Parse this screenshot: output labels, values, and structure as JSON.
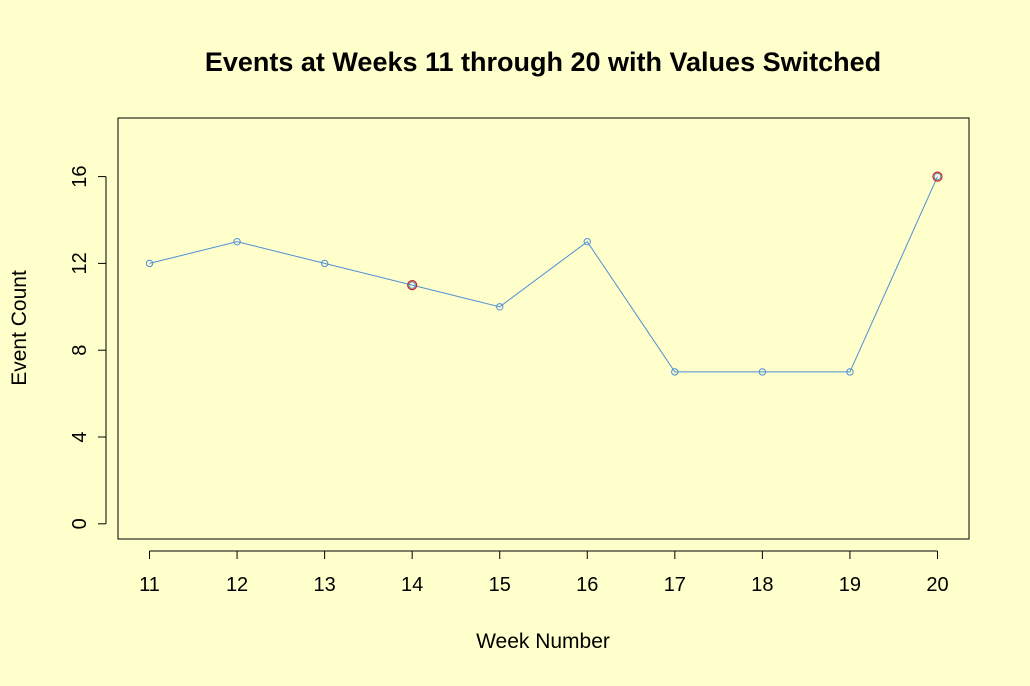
{
  "chart_data": {
    "type": "line",
    "title": "Events at Weeks 11 through 20 with Values Switched",
    "xlabel": "Week Number",
    "ylabel": "Event Count",
    "x": [
      11,
      12,
      13,
      14,
      15,
      16,
      17,
      18,
      19,
      20
    ],
    "x_tick_labels": [
      "11",
      "12",
      "13",
      "14",
      "15",
      "16",
      "17",
      "18",
      "19",
      "20"
    ],
    "y_ticks": [
      0,
      4,
      8,
      12,
      16
    ],
    "y_tick_labels": [
      "0",
      "4",
      "8",
      "12",
      "16"
    ],
    "xlim": [
      10.64,
      20.36
    ],
    "ylim": [
      -0.7,
      18.7
    ],
    "series": [
      {
        "values": [
          12,
          13,
          12,
          11,
          10,
          13,
          7,
          7,
          7,
          16
        ]
      }
    ],
    "highlighted_points": [
      {
        "x": 14,
        "y": 11
      },
      {
        "x": 20,
        "y": 16
      }
    ],
    "grid": false,
    "colors": {
      "background": "#ffffcc",
      "line": "#4f8fd6",
      "points": "#4f8fd6",
      "highlight": "#d42020",
      "axis": "#000000"
    }
  }
}
